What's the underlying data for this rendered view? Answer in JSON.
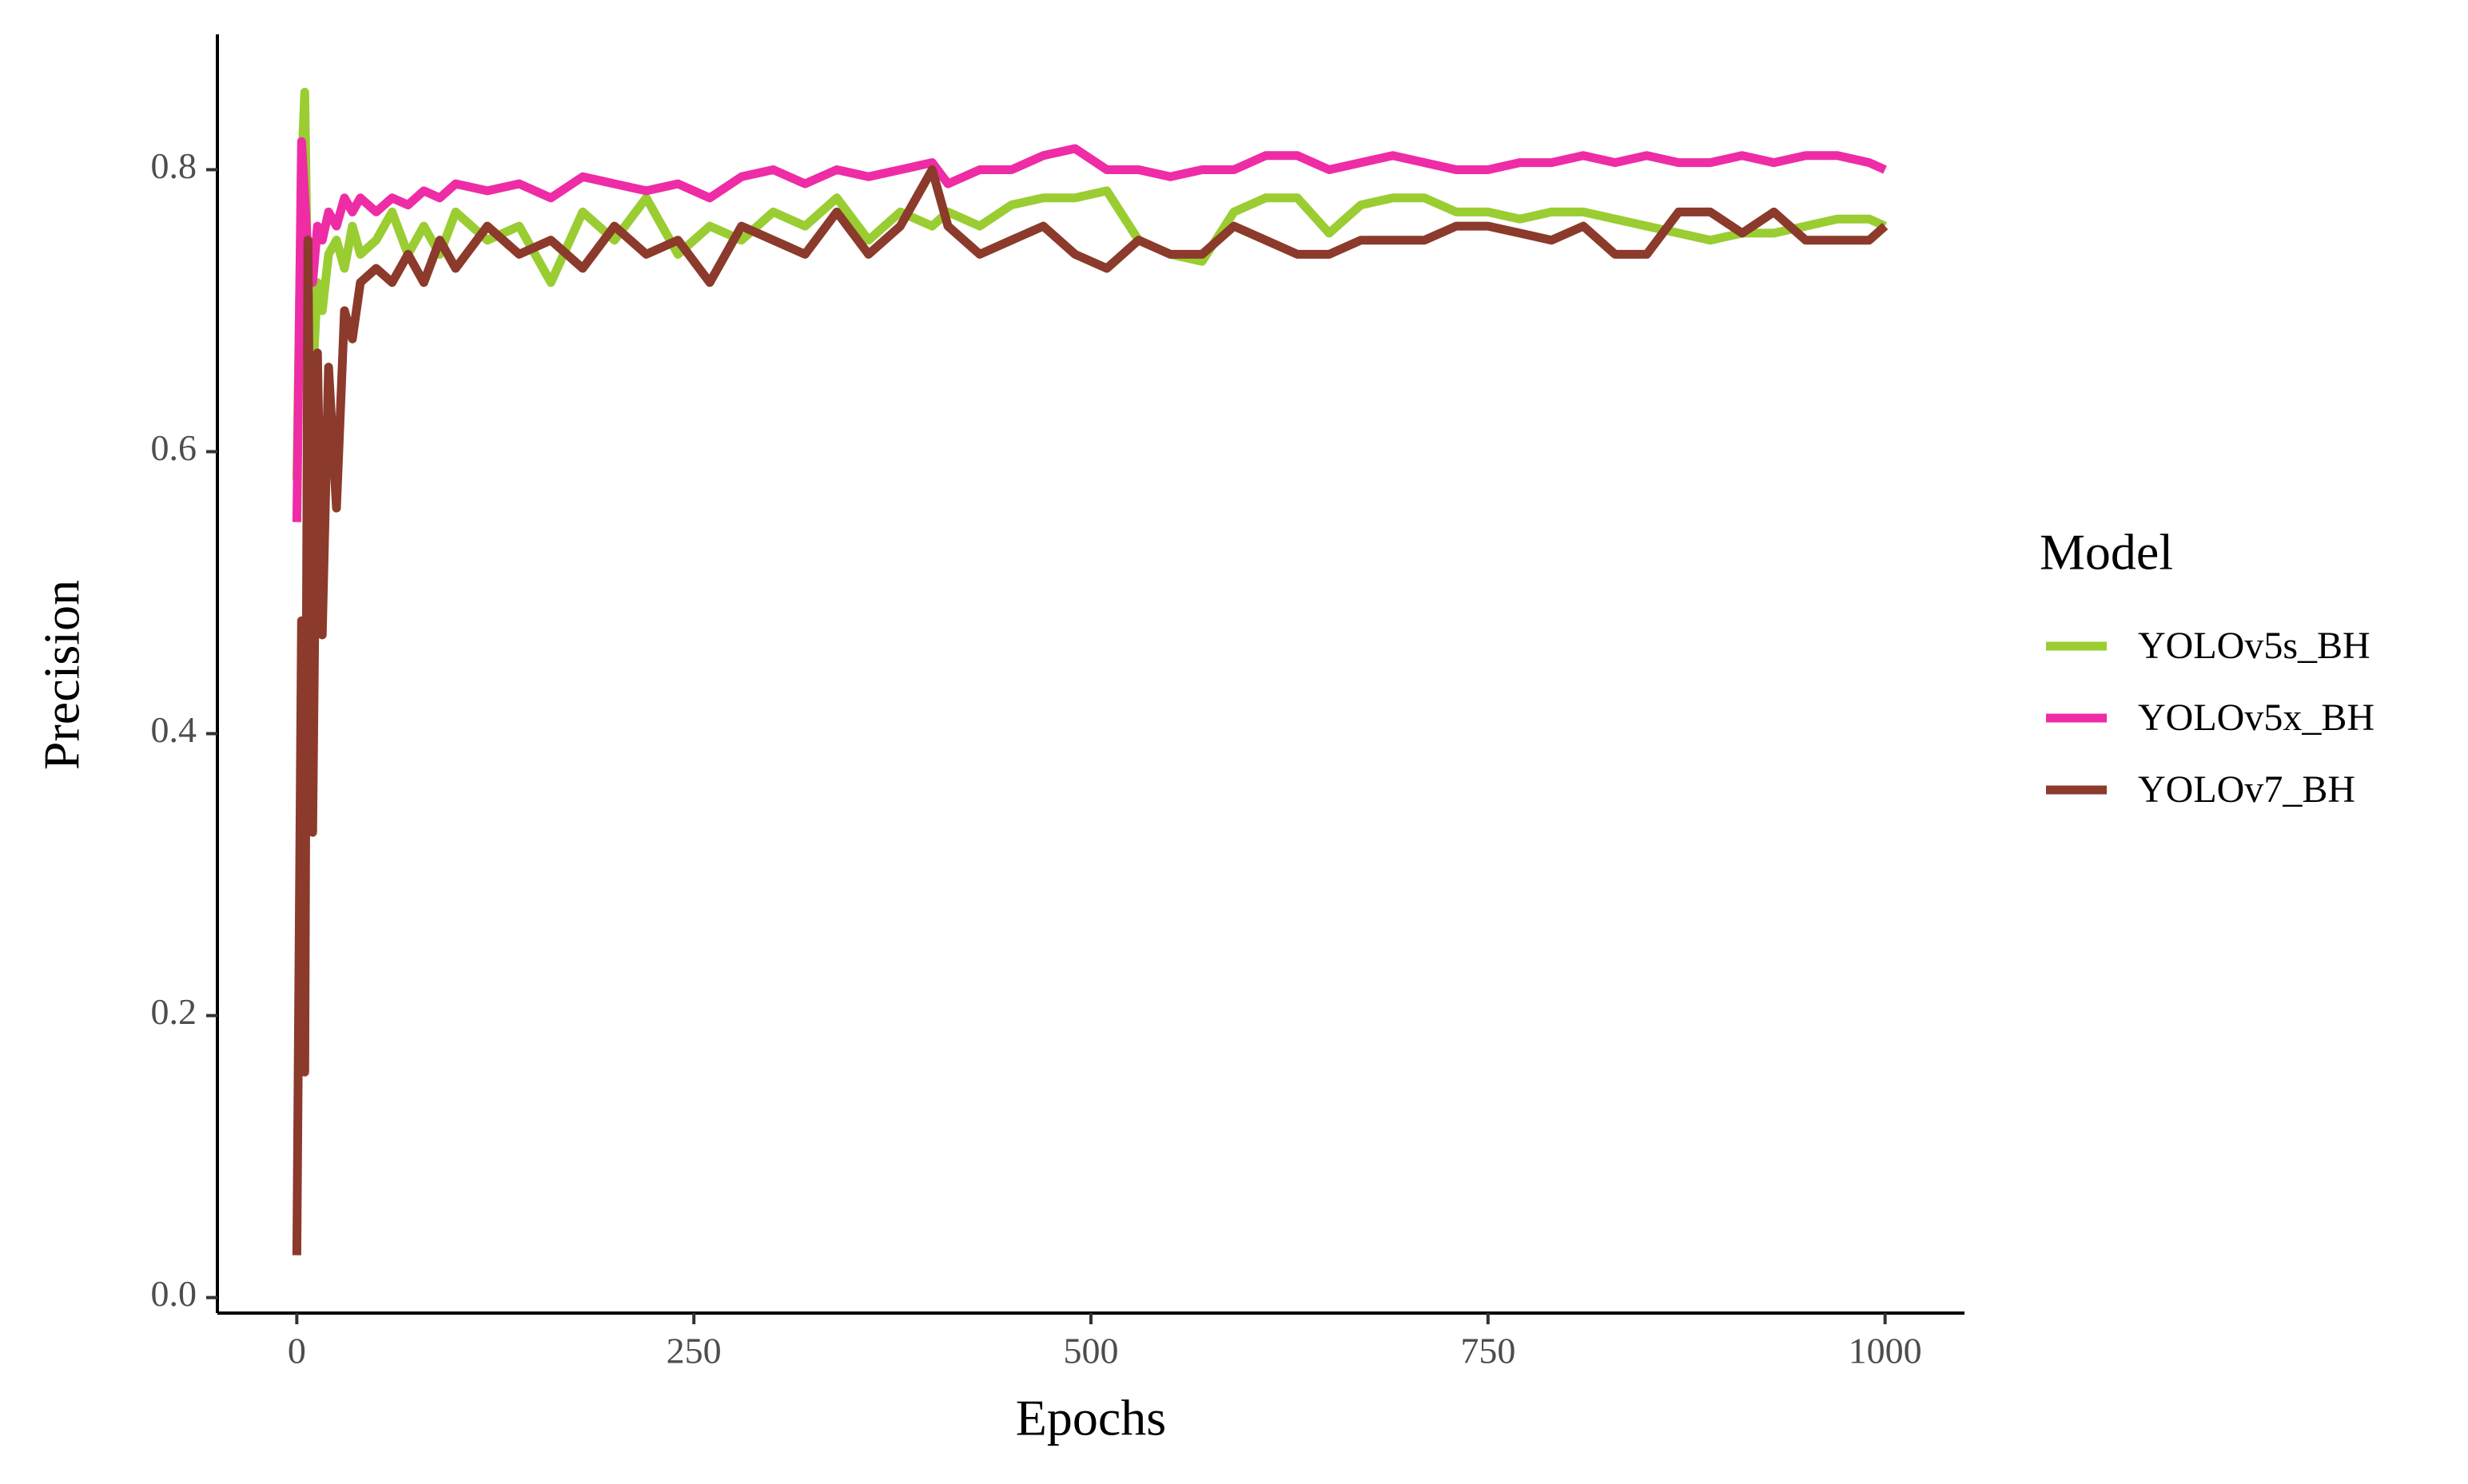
{
  "chart_data": {
    "type": "line",
    "xlabel": "Epochs",
    "ylabel": "Precision",
    "legend_title": "Model",
    "legend": "right",
    "grid": false,
    "xlim": [
      -50,
      1050
    ],
    "ylim": [
      -0.011,
      0.896
    ],
    "xticks": [
      0,
      250,
      500,
      750,
      1000
    ],
    "yticks": [
      {
        "value": 0,
        "label": "0.0"
      },
      0.2,
      0.4,
      0.6,
      0.8
    ],
    "x": [
      0,
      3,
      5,
      7,
      10,
      13,
      16,
      20,
      25,
      30,
      35,
      40,
      50,
      60,
      70,
      80,
      90,
      100,
      120,
      140,
      160,
      180,
      200,
      220,
      240,
      260,
      280,
      300,
      320,
      340,
      360,
      380,
      400,
      410,
      430,
      450,
      470,
      490,
      510,
      530,
      550,
      570,
      590,
      610,
      630,
      650,
      670,
      690,
      710,
      730,
      750,
      770,
      790,
      810,
      830,
      850,
      870,
      890,
      910,
      930,
      950,
      970,
      990,
      1000
    ],
    "series": [
      {
        "name": "YOLOv5s_BH",
        "color": "#9acd32",
        "values": [
          0.58,
          0.8,
          0.855,
          0.7,
          0.65,
          0.72,
          0.7,
          0.74,
          0.75,
          0.73,
          0.76,
          0.74,
          0.75,
          0.77,
          0.74,
          0.76,
          0.74,
          0.77,
          0.75,
          0.76,
          0.72,
          0.77,
          0.75,
          0.78,
          0.74,
          0.76,
          0.75,
          0.77,
          0.76,
          0.78,
          0.75,
          0.77,
          0.76,
          0.77,
          0.76,
          0.775,
          0.78,
          0.78,
          0.785,
          0.75,
          0.74,
          0.735,
          0.77,
          0.78,
          0.78,
          0.755,
          0.775,
          0.78,
          0.78,
          0.77,
          0.77,
          0.765,
          0.77,
          0.77,
          0.765,
          0.76,
          0.755,
          0.75,
          0.755,
          0.755,
          0.76,
          0.765,
          0.765,
          0.76
        ]
      },
      {
        "name": "YOLOv5x_BH",
        "color": "#ee2ca6",
        "values": [
          0.55,
          0.82,
          0.78,
          0.74,
          0.72,
          0.76,
          0.75,
          0.77,
          0.76,
          0.78,
          0.77,
          0.78,
          0.77,
          0.78,
          0.775,
          0.785,
          0.78,
          0.79,
          0.785,
          0.79,
          0.78,
          0.795,
          0.79,
          0.785,
          0.79,
          0.78,
          0.795,
          0.8,
          0.79,
          0.8,
          0.795,
          0.8,
          0.805,
          0.79,
          0.8,
          0.8,
          0.81,
          0.815,
          0.8,
          0.8,
          0.795,
          0.8,
          0.8,
          0.81,
          0.81,
          0.8,
          0.805,
          0.81,
          0.805,
          0.8,
          0.8,
          0.805,
          0.805,
          0.81,
          0.805,
          0.81,
          0.805,
          0.805,
          0.81,
          0.805,
          0.81,
          0.81,
          0.805,
          0.8
        ]
      },
      {
        "name": "YOLOv7_BH",
        "color": "#8b3a2b",
        "values": [
          0.03,
          0.48,
          0.16,
          0.75,
          0.33,
          0.67,
          0.47,
          0.66,
          0.56,
          0.7,
          0.68,
          0.72,
          0.73,
          0.72,
          0.74,
          0.72,
          0.75,
          0.73,
          0.76,
          0.74,
          0.75,
          0.73,
          0.76,
          0.74,
          0.75,
          0.72,
          0.76,
          0.75,
          0.74,
          0.77,
          0.74,
          0.76,
          0.8,
          0.76,
          0.74,
          0.75,
          0.76,
          0.74,
          0.73,
          0.75,
          0.74,
          0.74,
          0.76,
          0.75,
          0.74,
          0.74,
          0.75,
          0.75,
          0.75,
          0.76,
          0.76,
          0.755,
          0.75,
          0.76,
          0.74,
          0.74,
          0.77,
          0.77,
          0.755,
          0.77,
          0.75,
          0.75,
          0.75,
          0.76
        ]
      }
    ]
  }
}
